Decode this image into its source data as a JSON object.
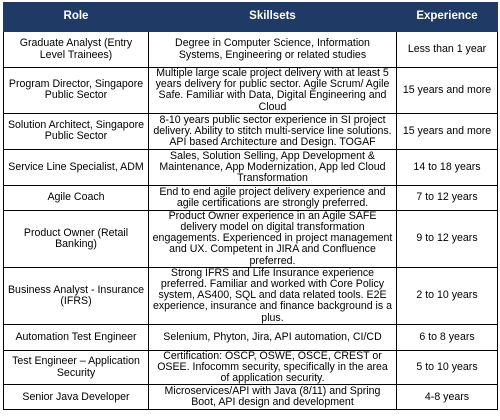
{
  "headers": {
    "role": "Role",
    "skillsets": "Skillsets",
    "experience": "Experience"
  },
  "rows": [
    {
      "role": "Graduate Analyst (Entry Level Trainees)",
      "skillsets": "Degree in Computer Science, Information Systems, Engineering or related studies",
      "experience": "Less than 1 year"
    },
    {
      "role": "Program Director, Singapore Public Sector",
      "skillsets": "Multiple large scale project delivery with at least 5 years delivery for public sector. Agile Scrum/ Agile Safe. Familiar with Data, Digital Engineering and Cloud",
      "experience": "15 years and more"
    },
    {
      "role": "Solution Architect, Singapore Public Sector",
      "skillsets": "8-10 years public sector experience in SI project delivery. Ability to stitch multi-service line solutions. API based Architecture and Design. TOGAF",
      "experience": "15 years and more"
    },
    {
      "role": "Service Line Specialist, ADM",
      "skillsets": "Sales, Solution Selling, App Development & Maintenance, App Modernization, App led Cloud Transformation",
      "experience": "14 to 18 years"
    },
    {
      "role": "Agile Coach",
      "skillsets": "End to end agile project delivery experience and agile certifications are strongly preferred.",
      "experience": "7 to 12 years"
    },
    {
      "role": "Product Owner (Retail Banking)",
      "skillsets": "Product Owner experience in an Agile SAFE delivery model on digital transformation engagements. Experienced in project management and UX. Competent in JIRA and Confluence preferred.",
      "experience": "9 to 12 years"
    },
    {
      "role": "Business Analyst - Insurance (IFRS)",
      "skillsets": "Strong IFRS and Life Insurance experience preferred. Familiar and worked with Core Policy system, AS400, SQL and data related tools. E2E experience, insurance and finance background is a plus.",
      "experience": "2 to 10 years"
    },
    {
      "role": "Automation Test Engineer",
      "skillsets": "Selenium, Phyton, Jira, API automation, CI/CD",
      "experience": "6 to 8 years"
    },
    {
      "role": "Test Engineer – Application Security",
      "skillsets": "Certification: OSCP, OSWE, OSCE, CREST or OSEE. Infocomm security, specifically in the area of application security.",
      "experience": "5 to 10 years"
    },
    {
      "role": "Senior Java Developer",
      "skillsets": "Microservices/API with Java (8/11) and Spring Boot, API design and development",
      "experience": "4-8 years"
    }
  ],
  "colors": {
    "header_background": "#1f3a64",
    "header_text": "#ffffff",
    "border": "#000000"
  }
}
